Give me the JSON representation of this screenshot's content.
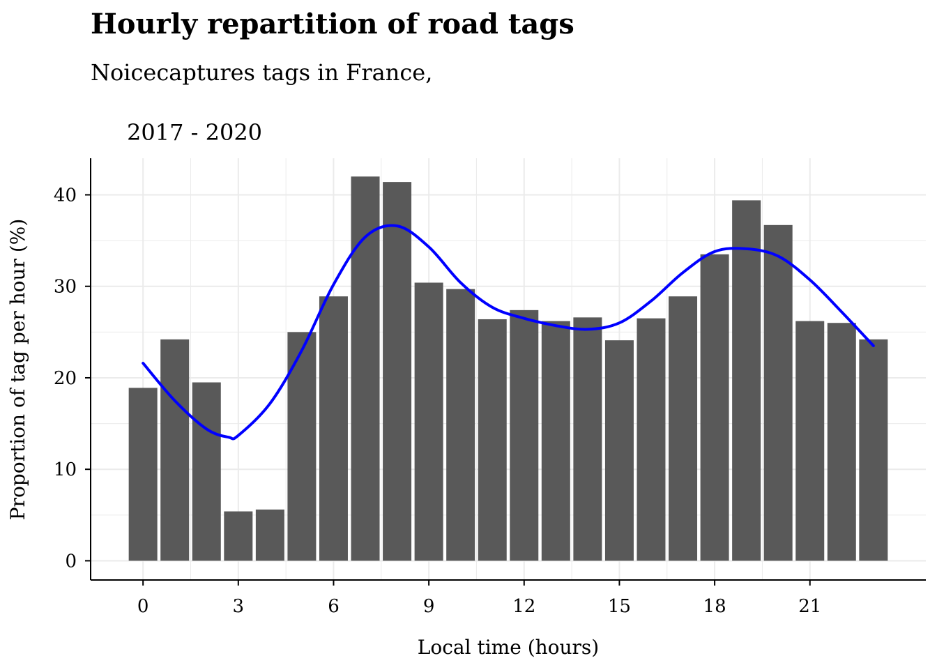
{
  "chart_data": {
    "type": "bar",
    "title": "Hourly repartition of road tags",
    "subtitle_lines": [
      "Noicecaptures tags in France,",
      "2017 - 2020"
    ],
    "xlabel": "Local time (hours)",
    "ylabel": "Proportion of tag per hour (%)",
    "x": [
      0,
      1,
      2,
      3,
      4,
      5,
      6,
      7,
      8,
      9,
      10,
      11,
      12,
      13,
      14,
      15,
      16,
      17,
      18,
      19,
      20,
      21,
      22,
      23
    ],
    "values": [
      18.9,
      24.2,
      19.5,
      5.4,
      5.6,
      25.0,
      28.9,
      42.0,
      41.4,
      30.4,
      29.7,
      26.4,
      27.4,
      26.2,
      26.6,
      24.1,
      26.5,
      28.9,
      33.5,
      39.4,
      36.7,
      26.2,
      26.0,
      24.2
    ],
    "xticks": [
      0,
      3,
      6,
      9,
      12,
      15,
      18,
      21
    ],
    "yticks": [
      0,
      10,
      20,
      30,
      40
    ],
    "xlim": [
      -1.65,
      24.65
    ],
    "ylim": [
      -2.1,
      44.0
    ],
    "grid": true,
    "smooth_line": {
      "x": [
        0,
        1,
        2,
        2.7,
        3,
        4,
        5,
        6,
        7,
        8,
        9,
        10,
        11,
        12,
        13,
        14,
        15,
        16,
        17,
        18,
        19,
        20,
        21,
        22,
        23
      ],
      "y": [
        21.6,
        17.5,
        14.4,
        13.5,
        13.7,
        17.2,
        23.0,
        30.2,
        35.4,
        36.6,
        34.3,
        30.4,
        27.7,
        26.5,
        25.7,
        25.3,
        26.0,
        28.4,
        31.5,
        33.8,
        34.1,
        33.3,
        30.7,
        27.2,
        23.5
      ]
    },
    "colors": {
      "bar": "#595959",
      "line": "#0000ff",
      "grid": "#ebebeb",
      "axis": "#000000",
      "background": "#ffffff"
    }
  }
}
